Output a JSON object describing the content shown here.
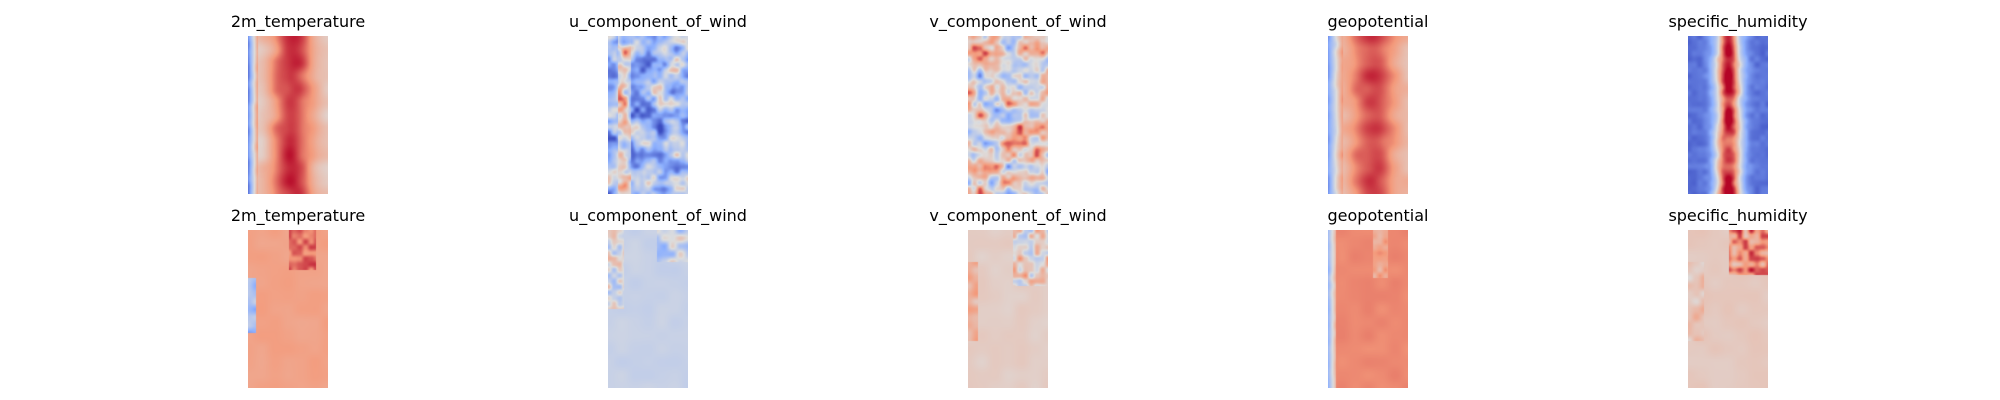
{
  "figure": {
    "rows": [
      {
        "panels": [
          {
            "title": "2m_temperature",
            "pattern": "temp_hi"
          },
          {
            "title": "u_component_of_wind",
            "pattern": "uwind_hi"
          },
          {
            "title": "v_component_of_wind",
            "pattern": "vwind_hi"
          },
          {
            "title": "geopotential",
            "pattern": "geo_hi"
          },
          {
            "title": "specific_humidity",
            "pattern": "humid_hi"
          }
        ]
      },
      {
        "panels": [
          {
            "title": "2m_temperature",
            "pattern": "temp_lo"
          },
          {
            "title": "u_component_of_wind",
            "pattern": "uwind_lo"
          },
          {
            "title": "v_component_of_wind",
            "pattern": "vwind_lo"
          },
          {
            "title": "geopotential",
            "pattern": "geo_lo"
          },
          {
            "title": "specific_humidity",
            "pattern": "humid_lo"
          }
        ]
      }
    ],
    "colormap": "coolwarm"
  }
}
